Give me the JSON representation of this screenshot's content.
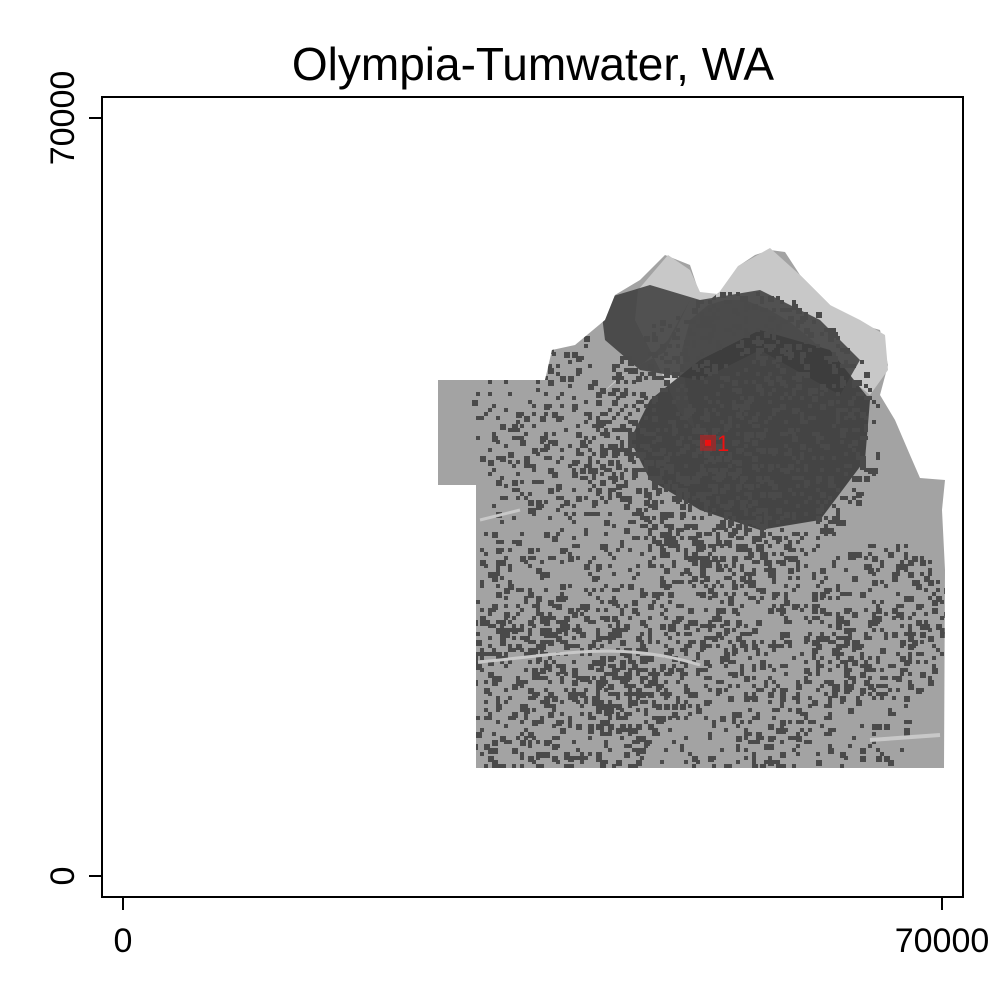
{
  "chart_data": {
    "type": "map",
    "title": "Olympia-Tumwater, WA",
    "x_range": [
      0,
      70000
    ],
    "y_range": [
      0,
      70000
    ],
    "x_ticks": [
      {
        "value": 0,
        "label": "0"
      },
      {
        "value": 70000,
        "label": "70000"
      }
    ],
    "y_ticks": [
      {
        "value": 0,
        "label": "0"
      },
      {
        "value": 70000,
        "label": "70000"
      }
    ],
    "markers": [
      {
        "label": "1",
        "x": 50000,
        "y": 40000
      }
    ],
    "colors": {
      "developed_dense": "#3c3c3c",
      "developed_scattered": "#4a4a4a",
      "land": "#a3a3a3",
      "water": "#c8c8c8",
      "marker": "#ee1111",
      "frame": "#000000"
    }
  }
}
